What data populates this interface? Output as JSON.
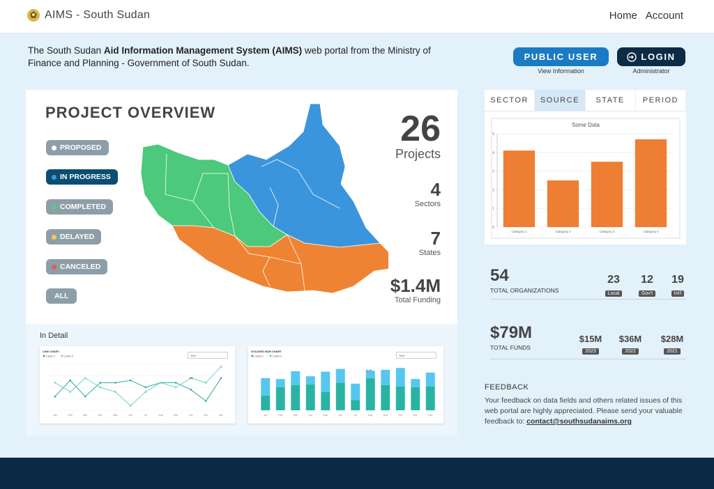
{
  "header": {
    "title": "AIMS - South Sudan",
    "nav": [
      "Home",
      "Account"
    ]
  },
  "intro": {
    "part1": "The South Sudan ",
    "bold": "Aid Information Management System (AIMS)",
    "part2": " web portal from the Ministry of Finance and Planning - Government of South Sudan."
  },
  "auth": {
    "public_label": "PUBLIC USER",
    "public_sub": "View Information",
    "login_label": "LOGIN",
    "login_sub": "Administrator"
  },
  "overview": {
    "title": "PROJECT OVERVIEW",
    "statuses": [
      {
        "label": "PROPOSED",
        "color": "#ffffff"
      },
      {
        "label": "IN PROGRESS",
        "color": "#3a9ad9"
      },
      {
        "label": "COMPLETED",
        "color": "#4cd37a"
      },
      {
        "label": "DELAYED",
        "color": "#f2c94c"
      },
      {
        "label": "CANCELED",
        "color": "#eb5757"
      },
      {
        "label": "ALL",
        "color": ""
      }
    ],
    "stats": {
      "projects": "26",
      "projects_label": "Projects",
      "sectors": "4",
      "sectors_label": "Sectors",
      "states": "7",
      "states_label": "States",
      "funding": "$1.4M",
      "funding_label": "Total Funding"
    }
  },
  "detail": {
    "title": "In Detail",
    "line_chart": {
      "title": "LINE CHART",
      "select": "Year",
      "legend": [
        "Label 1",
        "Label 2"
      ],
      "tooltip": "12K"
    },
    "bar_chart": {
      "title": "STACKED BAR CHART",
      "select": "Year",
      "legend": [
        "Label 1",
        "Label 2"
      ],
      "tooltip": "14.2K"
    },
    "months": [
      "Jan",
      "Feb",
      "Mar",
      "Apr",
      "May",
      "Jun",
      "Jul",
      "Aug",
      "Sep",
      "Oct",
      "Nov",
      "Dec"
    ]
  },
  "tabs": [
    "SECTOR",
    "SOURCE",
    "STATE",
    "PERIOD"
  ],
  "active_tab": "SOURCE",
  "chart_data": {
    "type": "bar",
    "title": "Some Data",
    "categories": [
      "Category 1",
      "Category 2",
      "Category 3",
      "Category 4"
    ],
    "values": [
      4.1,
      2.5,
      3.5,
      4.7
    ],
    "ylim": [
      0,
      5
    ],
    "yticks": [
      0,
      1,
      2,
      3,
      4,
      5
    ],
    "color": "#ee7e33"
  },
  "organizations": {
    "total": "54",
    "total_label": "TOTAL ORGANIZATIONS",
    "breakdown": [
      {
        "value": "23",
        "tag": "Local"
      },
      {
        "value": "12",
        "tag": "Gov't"
      },
      {
        "value": "19",
        "tag": "Int'l"
      }
    ]
  },
  "funds": {
    "total": "$79M",
    "total_label": "TOTAL FUNDS",
    "breakdown": [
      {
        "value": "$15M",
        "tag": "2023"
      },
      {
        "value": "$36M",
        "tag": "2022"
      },
      {
        "value": "$28M",
        "tag": "2021"
      }
    ]
  },
  "feedback": {
    "title": "FEEDBACK",
    "text": "Your feedback on data fields and others related issues of this web portal are highly appreciated. Please send your valuable feedback to: ",
    "email": "contact@southsudanaims.org"
  },
  "colors": {
    "primary": "#1a7ac4",
    "dark": "#0b2a46",
    "map_green": "#4cc97a",
    "map_blue": "#3a95dc",
    "map_orange": "#ee8433"
  }
}
